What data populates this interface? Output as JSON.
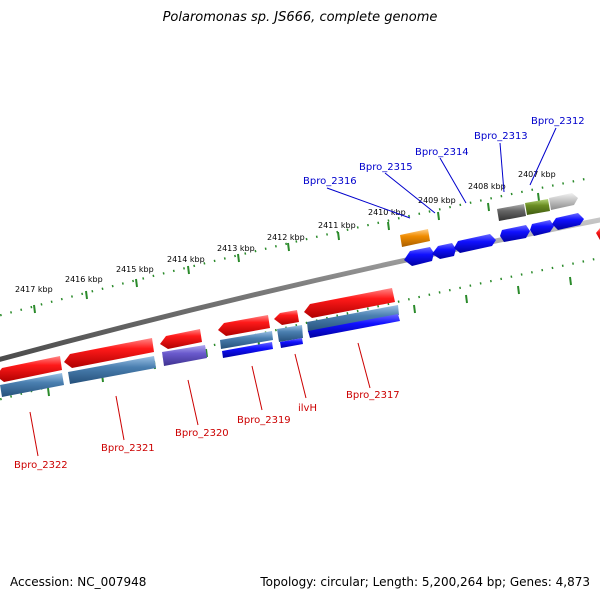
{
  "title": "Polaromonas sp. JS666, complete genome",
  "footer": {
    "accession": "Accession: NC_007948",
    "summary": "Topology: circular; Length: 5,200,264 bp; Genes: 4,873"
  },
  "colors": {
    "forward_cds": "#ee1111",
    "reverse_cds": "#1111ee",
    "steel": "#4a7fb0",
    "purple": "#6a5acd",
    "orange": "#f08c00",
    "gray": "#707070",
    "olive": "#6b8e23",
    "light_gray": "#c8c8c8",
    "tick": "#2a8a2a",
    "backbone": "#8a8a8a",
    "label_top": "#0000cc",
    "label_bottom": "#cc0000"
  },
  "tick_labels": [
    "2407 kbp",
    "2408 kbp",
    "2409 kbp",
    "2410 kbp",
    "2411 kbp",
    "2412 kbp",
    "2413 kbp",
    "2414 kbp",
    "2415 kbp",
    "2416 kbp",
    "2417 kbp"
  ],
  "genes_top": [
    "Bpro_2312",
    "Bpro_2313",
    "Bpro_2314",
    "Bpro_2315",
    "Bpro_2316"
  ],
  "genes_bottom": [
    "Bpro_2317",
    "ilvH",
    "Bpro_2319",
    "Bpro_2320",
    "Bpro_2321",
    "Bpro_2322"
  ]
}
